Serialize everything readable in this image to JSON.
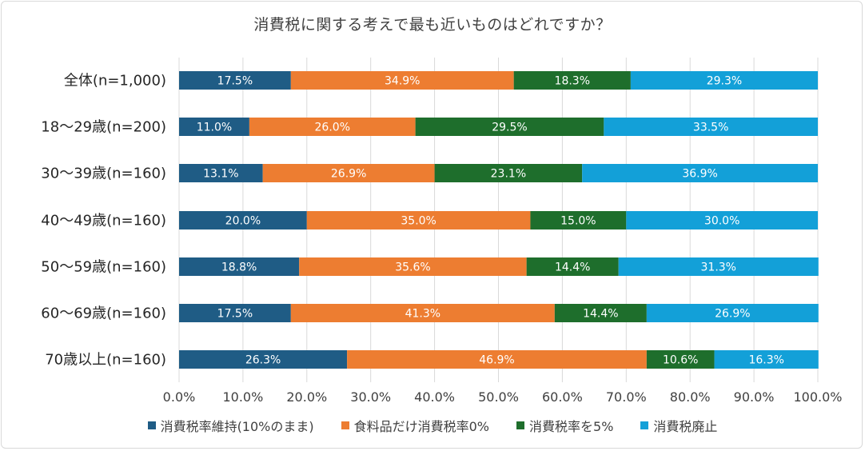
{
  "chart_data": {
    "type": "bar",
    "orientation": "horizontal",
    "stacked": true,
    "title": "消費税に関する考えで最も近いものはどれですか？",
    "categories": [
      "全体(n=1,000)",
      "18～29歳(n=200)",
      "30～39歳(n=160)",
      "40～49歳(n=160)",
      "50～59歳(n=160)",
      "60～69歳(n=160)",
      "70歳以上(n=160)"
    ],
    "series": [
      {
        "name": "消費税率維持(10%のまま)",
        "color": "#1f5c85",
        "values": [
          17.5,
          11.0,
          13.1,
          20.0,
          18.8,
          17.5,
          26.3
        ]
      },
      {
        "name": "食料品だけ消費税率0%",
        "color": "#ed7d31",
        "values": [
          34.9,
          26.0,
          26.9,
          35.0,
          35.6,
          41.3,
          46.9
        ]
      },
      {
        "name": "消費税率を5%",
        "color": "#1e6e2c",
        "values": [
          18.3,
          29.5,
          23.1,
          15.0,
          14.4,
          14.4,
          10.6
        ]
      },
      {
        "name": "消費税廃止",
        "color": "#13a0d8",
        "values": [
          29.3,
          33.5,
          36.9,
          30.0,
          31.3,
          26.9,
          16.3
        ]
      }
    ],
    "xlim": [
      0,
      100
    ],
    "xticks": [
      "0.0%",
      "10.0%",
      "20.0%",
      "30.0%",
      "40.0%",
      "50.0%",
      "60.0%",
      "70.0%",
      "80.0%",
      "90.0%",
      "100.0%"
    ],
    "grid": true,
    "legend_position": "bottom"
  }
}
